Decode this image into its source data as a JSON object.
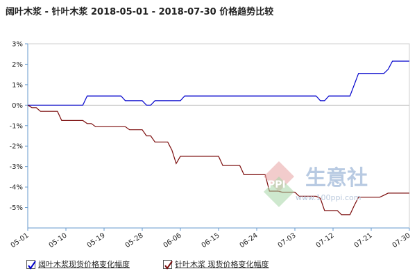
{
  "chart_data": {
    "type": "line",
    "title": "阔叶木浆 - 针叶木浆 2018-05-01 - 2018-07-30 价格趋势比较",
    "xlabel": "",
    "ylabel": "",
    "x_tick_labels": [
      "05-01",
      "05-10",
      "05-19",
      "05-28",
      "06-06",
      "06-15",
      "06-24",
      "07-03",
      "07-12",
      "07-21",
      "07-30"
    ],
    "x_range": [
      0,
      90
    ],
    "ylim": [
      -6,
      3
    ],
    "y_tick_labels": [
      "3%",
      "2%",
      "1%",
      "0%",
      "-1%",
      "-2%",
      "-3%",
      "-4%",
      "-5%"
    ],
    "y_tick_values": [
      3,
      2,
      1,
      0,
      -1,
      -2,
      -3,
      -4,
      -5
    ],
    "grid": false,
    "legend_position": "bottom",
    "series": [
      {
        "name": "阔叶木浆现货价格变化幅度",
        "color": "#0000cc",
        "points": [
          [
            0,
            0
          ],
          [
            13,
            0
          ],
          [
            14,
            0.45
          ],
          [
            22,
            0.45
          ],
          [
            23,
            0.22
          ],
          [
            27,
            0.22
          ],
          [
            28,
            0
          ],
          [
            29,
            0
          ],
          [
            30,
            0.22
          ],
          [
            36,
            0.22
          ],
          [
            37,
            0.45
          ],
          [
            68,
            0.45
          ],
          [
            69,
            0.22
          ],
          [
            70,
            0.22
          ],
          [
            71,
            0.45
          ],
          [
            76,
            0.45
          ],
          [
            77,
            1.0
          ],
          [
            78,
            1.55
          ],
          [
            84,
            1.55
          ],
          [
            85,
            1.75
          ],
          [
            86,
            2.15
          ],
          [
            90,
            2.15
          ]
        ]
      },
      {
        "name": "针叶木浆 现货价格变化幅度",
        "color": "#7a0a0a",
        "points": [
          [
            0,
            0
          ],
          [
            1,
            -0.12
          ],
          [
            2,
            -0.12
          ],
          [
            3,
            -0.3
          ],
          [
            7,
            -0.3
          ],
          [
            8,
            -0.75
          ],
          [
            13,
            -0.75
          ],
          [
            14,
            -0.9
          ],
          [
            15,
            -0.9
          ],
          [
            16,
            -1.05
          ],
          [
            23,
            -1.05
          ],
          [
            24,
            -1.2
          ],
          [
            27,
            -1.2
          ],
          [
            28,
            -1.5
          ],
          [
            29,
            -1.5
          ],
          [
            30,
            -1.8
          ],
          [
            33,
            -1.8
          ],
          [
            34,
            -2.2
          ],
          [
            35,
            -2.85
          ],
          [
            36,
            -2.5
          ],
          [
            45,
            -2.5
          ],
          [
            46,
            -2.95
          ],
          [
            50,
            -2.95
          ],
          [
            51,
            -3.4
          ],
          [
            56,
            -3.4
          ],
          [
            57,
            -4.2
          ],
          [
            59,
            -4.2
          ],
          [
            60,
            -4.25
          ],
          [
            63,
            -4.25
          ],
          [
            64,
            -4.45
          ],
          [
            68,
            -4.45
          ],
          [
            69,
            -4.55
          ],
          [
            70,
            -5.15
          ],
          [
            73,
            -5.15
          ],
          [
            74,
            -5.35
          ],
          [
            76,
            -5.35
          ],
          [
            77,
            -4.9
          ],
          [
            78,
            -4.5
          ],
          [
            83,
            -4.5
          ],
          [
            84,
            -4.4
          ],
          [
            85,
            -4.3
          ],
          [
            90,
            -4.3
          ]
        ]
      }
    ]
  },
  "watermark": {
    "text": "生意社",
    "site": "www.100ppi.com",
    "logo": "PPI"
  }
}
